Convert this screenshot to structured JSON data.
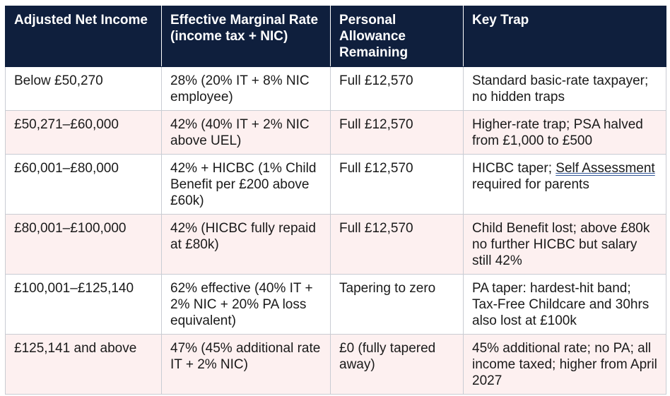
{
  "table": {
    "headers": [
      "Adjusted Net Income",
      "Effective Marginal Rate (income tax + NIC)",
      "Personal Allowance Remaining",
      "Key Trap"
    ],
    "rows": [
      {
        "income": "Below £50,270",
        "rate": "28% (20% IT + 8% NIC employee)",
        "allowance": "Full £12,570",
        "trap": "Standard basic-rate taxpayer; no hidden traps"
      },
      {
        "income": "£50,271–£60,000",
        "rate": "42% (40% IT + 2% NIC above UEL)",
        "allowance": "Full £12,570",
        "trap": "Higher-rate trap; PSA halved from £1,000 to £500"
      },
      {
        "income": "£60,001–£80,000",
        "rate": "42% + HICBC (1% Child Benefit per £200 above £60k)",
        "allowance": "Full £12,570",
        "trap_before": "HICBC taper; ",
        "trap_link": "Self Assessment",
        "trap_after": " required for parents"
      },
      {
        "income": "£80,001–£100,000",
        "rate": "42% (HICBC fully repaid at £80k)",
        "allowance": "Full £12,570",
        "trap": "Child Benefit lost; above £80k no further HICBC but salary still 42%"
      },
      {
        "income": "£100,001–£125,140",
        "rate": "62% effective (40% IT + 2% NIC + 20% PA loss equivalent)",
        "allowance": "Tapering to zero",
        "trap": "PA taper: hardest-hit band; Tax-Free Childcare and 30hrs also lost at £100k"
      },
      {
        "income": "£125,141 and above",
        "rate": "47% (45% additional rate IT + 2% NIC)",
        "allowance": "£0 (fully tapered away)",
        "trap": "45% additional rate; no PA; all income taxed; higher from April 2027"
      }
    ]
  },
  "colors": {
    "header_bg": "#0f1f3d",
    "header_text": "#ffffff",
    "row_alt_bg": "#fdf0f0",
    "border": "#c9ccd3"
  }
}
